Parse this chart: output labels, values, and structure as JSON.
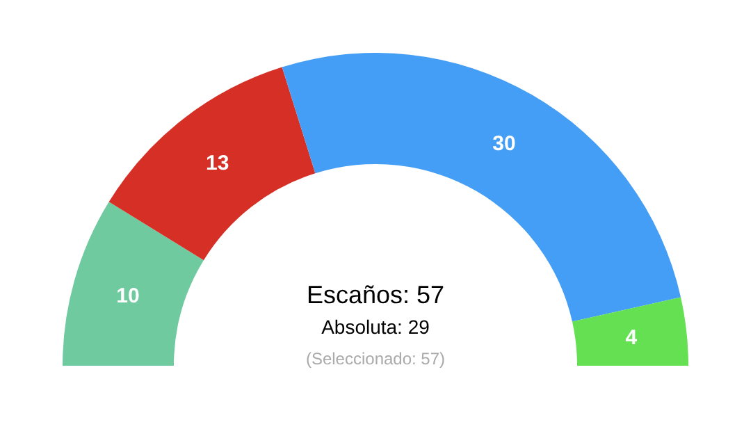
{
  "chart_data": {
    "type": "donut",
    "categories": [
      null,
      null,
      null,
      null
    ],
    "values": [
      10,
      13,
      30,
      4
    ],
    "colors": [
      "#6fcb9f",
      "#d63026",
      "#459ef6",
      "#64e052"
    ],
    "data_labels": true,
    "annotations": [
      "Escaños: 57",
      "Absoluta: 29",
      "(Seleccionado: 57)"
    ]
  }
}
